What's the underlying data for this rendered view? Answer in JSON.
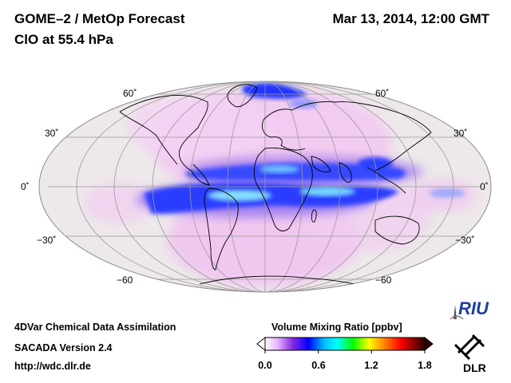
{
  "header": {
    "title": "GOME–2 / MetOp Forecast",
    "subtitle": "ClO at 55.4 hPa",
    "date": "Mar 13, 2014, 12:00 GMT"
  },
  "footer": {
    "line1": "4DVar Chemical Data Assimilation",
    "line2": "SACADA Version 2.4",
    "line3": "http://wdc.dlr.de"
  },
  "map": {
    "projection": "Mollweide",
    "lat_labels_left": [
      "60˚",
      "30˚",
      "0˚",
      "−30˚",
      "−60"
    ],
    "lat_labels_right": [
      "60˚",
      "30˚",
      "0˚",
      "−30˚",
      "−60"
    ],
    "colors": {
      "background": "#ede8ea",
      "low": "#f0c8f0",
      "mid": "#3a50ff",
      "high": "#9ef4ff",
      "grid": "#9a9a9a",
      "coast": "#000000"
    }
  },
  "colorbar": {
    "title": "Volume Mixing Ratio [ppbv]",
    "tick_labels": [
      "0.0",
      "0.6",
      "1.2",
      "1.8"
    ],
    "stops": [
      "#ffffff",
      "#e6b0ff",
      "#8a2be2",
      "#0000ff",
      "#00bfff",
      "#00ffff",
      "#00ff00",
      "#ffff00",
      "#ff8000",
      "#ff0000",
      "#8b0000",
      "#300000"
    ]
  },
  "logos": {
    "riu": "RIU",
    "dlr": "DLR"
  }
}
